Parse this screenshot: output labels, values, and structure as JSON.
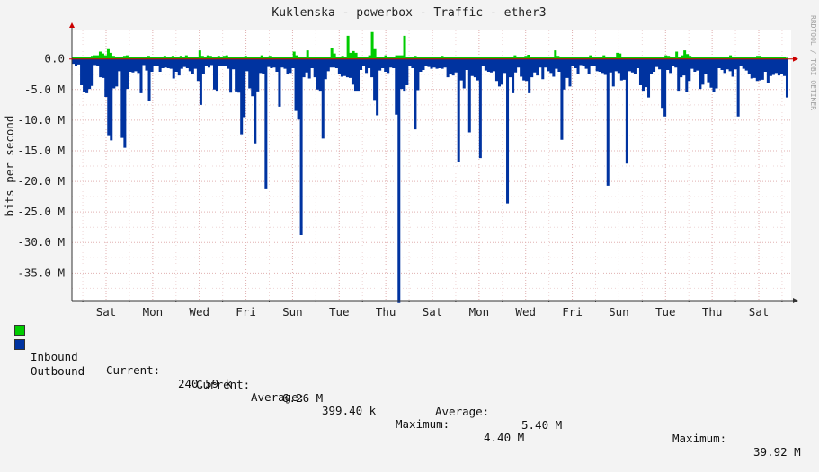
{
  "chart_data": {
    "type": "area",
    "title": "Kuklenska - powerbox - Traffic - ether3",
    "ylabel": "bits per second",
    "watermark": "RRDTOOL / TOBI OETIKER",
    "ylim": [
      -39500000,
      4800000
    ],
    "yticks": [
      {
        "value": 0,
        "label": "0.0"
      },
      {
        "value": -5000000,
        "label": "-5.0 M"
      },
      {
        "value": -10000000,
        "label": "-10.0 M"
      },
      {
        "value": -15000000,
        "label": "-15.0 M"
      },
      {
        "value": -20000000,
        "label": "-20.0 M"
      },
      {
        "value": -25000000,
        "label": "-25.0 M"
      },
      {
        "value": -30000000,
        "label": "-30.0 M"
      },
      {
        "value": -35000000,
        "label": "-35.0 M"
      }
    ],
    "xticks": [
      "Sat",
      "Mon",
      "Wed",
      "Fri",
      "Sun",
      "Tue",
      "Thu",
      "Sat",
      "Mon",
      "Wed",
      "Fri",
      "Sun",
      "Tue",
      "Thu",
      "Sat"
    ],
    "grid": true,
    "colors": {
      "inbound": "#00cc00",
      "outbound": "#0033a0",
      "axis": "#cc0000"
    },
    "series": [
      {
        "name": "Inbound",
        "values": [
          0.4,
          0.3,
          0.3,
          0.3,
          0.3,
          0.3,
          0.4,
          0.5,
          0.6,
          0.6,
          1.2,
          0.9,
          0.6,
          1.6,
          1.0,
          0.5,
          0.4,
          0.3,
          0.3,
          0.5,
          0.6,
          0.4,
          0.3,
          0.3,
          0.3,
          0.4,
          0.3,
          0.3,
          0.5,
          0.4,
          0.3,
          0.3,
          0.4,
          0.3,
          0.5,
          0.3,
          0.3,
          0.5,
          0.3,
          0.3,
          0.5,
          0.4,
          0.6,
          0.4,
          0.3,
          0.4,
          0.3,
          1.4,
          0.5,
          0.3,
          0.6,
          0.5,
          0.4,
          0.4,
          0.5,
          0.4,
          0.5,
          0.6,
          0.4,
          0.3,
          0.3,
          0.3,
          0.4,
          0.3,
          0.5,
          0.3,
          0.3,
          0.4,
          0.3,
          0.4,
          0.6,
          0.4,
          0.4,
          0.5,
          0.4,
          0.3,
          0.3,
          0.3,
          0.3,
          0.3,
          0.3,
          0.3,
          1.2,
          0.6,
          0.4,
          0.3,
          0.3,
          1.4,
          0.3,
          0.3,
          0.3,
          0.4,
          0.4,
          0.4,
          0.4,
          0.4,
          1.8,
          0.9,
          0.3,
          0.3,
          0.5,
          0.3,
          3.8,
          1.0,
          1.3,
          1.0,
          0.3,
          0.4,
          0.4,
          0.3,
          0.6,
          4.4,
          1.6,
          0.3,
          0.3,
          0.3,
          0.6,
          0.4,
          0.4,
          0.4,
          0.6,
          0.6,
          0.6,
          3.8,
          0.4,
          0.4,
          0.4,
          0.5,
          0.3,
          0.3,
          0.3,
          0.3,
          0.3,
          0.4,
          0.3,
          0.4,
          0.3,
          0.5,
          0.3,
          0.3,
          0.3,
          0.3,
          0.3,
          0.3,
          0.3,
          0.4,
          0.4,
          0.3,
          0.3,
          0.3,
          0.3,
          0.3,
          0.4,
          0.4,
          0.4,
          0.3,
          0.3,
          0.3,
          0.4,
          0.3,
          0.3,
          0.3,
          0.3,
          0.3,
          0.6,
          0.4,
          0.3,
          0.3,
          0.5,
          0.7,
          0.4,
          0.4,
          0.3,
          0.3,
          0.4,
          0.3,
          0.4,
          0.3,
          0.3,
          1.4,
          0.5,
          0.4,
          0.3,
          0.3,
          0.4,
          0.3,
          0.3,
          0.4,
          0.4,
          0.3,
          0.3,
          0.3,
          0.6,
          0.4,
          0.4,
          0.3,
          0.3,
          0.6,
          0.4,
          0.4,
          0.3,
          0.3,
          1.0,
          0.9,
          0.3,
          0.3,
          0.4,
          0.3,
          0.3,
          0.3,
          0.3,
          0.3,
          0.3,
          0.4,
          0.3,
          0.3,
          0.4,
          0.4,
          0.3,
          0.4,
          0.6,
          0.5,
          0.4,
          0.4,
          1.2,
          0.3,
          0.6,
          1.4,
          0.8,
          0.5,
          0.3,
          0.4,
          0.3,
          0.3,
          0.3,
          0.3,
          0.4,
          0.4,
          0.3,
          0.3,
          0.3,
          0.3,
          0.3,
          0.3,
          0.6,
          0.4,
          0.3,
          0.3,
          0.4,
          0.3,
          0.3,
          0.3,
          0.3,
          0.3,
          0.5,
          0.5,
          0.3,
          0.3,
          0.3,
          0.4,
          0.3,
          0.3,
          0.4,
          0.3,
          0.3,
          0.2
        ]
      },
      {
        "name": "Outbound",
        "values": [
          -0.8,
          -1.2,
          -0.9,
          -4.3,
          -5.4,
          -5.6,
          -4.9,
          -4.4,
          -1.0,
          -1.1,
          -3.0,
          -3.1,
          -6.2,
          -12.6,
          -13.3,
          -4.8,
          -4.5,
          -2.0,
          -12.9,
          -14.5,
          -4.9,
          -2.1,
          -2.2,
          -2.0,
          -2.3,
          -5.6,
          -1.0,
          -1.9,
          -6.8,
          -2.1,
          -1.2,
          -1.1,
          -2.1,
          -1.5,
          -1.4,
          -1.5,
          -1.6,
          -3.2,
          -2.1,
          -2.7,
          -1.6,
          -1.3,
          -1.5,
          -2.0,
          -2.4,
          -1.6,
          -3.6,
          -7.5,
          -2.4,
          -1.2,
          -1.4,
          -1.0,
          -5.0,
          -5.2,
          -1.1,
          -1.1,
          -1.2,
          -1.6,
          -5.5,
          -1.7,
          -5.3,
          -5.5,
          -12.3,
          -9.5,
          -2.0,
          -4.8,
          -6.1,
          -13.8,
          -5.3,
          -2.3,
          -2.5,
          -21.3,
          -1.3,
          -1.5,
          -1.4,
          -2.1,
          -7.8,
          -1.4,
          -1.6,
          -2.5,
          -2.3,
          -1.5,
          -8.5,
          -9.9,
          -28.8,
          -3.0,
          -2.2,
          -3.2,
          -1.5,
          -3.0,
          -5.0,
          -5.2,
          -13.0,
          -3.3,
          -2.0,
          -1.4,
          -1.4,
          -1.5,
          -2.5,
          -2.9,
          -2.8,
          -3.0,
          -3.1,
          -4.2,
          -5.2,
          -5.2,
          -1.8,
          -1.2,
          -2.3,
          -1.5,
          -3.0,
          -6.7,
          -9.2,
          -1.9,
          -1.5,
          -2.1,
          -2.3,
          -1.4,
          -1.5,
          -9.1,
          -39.9,
          -4.9,
          -5.2,
          -4.3,
          -1.2,
          -1.5,
          -11.5,
          -5.1,
          -2.1,
          -1.8,
          -1.2,
          -1.3,
          -1.6,
          -1.4,
          -1.6,
          -1.5,
          -1.6,
          -1.4,
          -3.0,
          -2.5,
          -2.7,
          -2.2,
          -16.8,
          -3.5,
          -4.8,
          -1.8,
          -12.0,
          -2.8,
          -3.0,
          -3.5,
          -16.2,
          -1.2,
          -1.9,
          -2.1,
          -2.2,
          -2.0,
          -3.6,
          -4.5,
          -4.2,
          -2.3,
          -23.6,
          -3.0,
          -5.6,
          -2.2,
          -1.4,
          -2.9,
          -3.5,
          -3.6,
          -5.6,
          -3.0,
          -2.2,
          -2.7,
          -1.4,
          -3.3,
          -1.4,
          -2.0,
          -2.3,
          -2.9,
          -1.6,
          -2.1,
          -13.2,
          -5.0,
          -3.1,
          -4.5,
          -1.1,
          -1.5,
          -2.4,
          -1.0,
          -1.2,
          -1.6,
          -2.5,
          -1.2,
          -1.1,
          -2.0,
          -2.1,
          -2.3,
          -2.6,
          -20.7,
          -2.2,
          -4.5,
          -2.0,
          -2.3,
          -3.5,
          -3.4,
          -17.1,
          -2.0,
          -2.2,
          -2.4,
          -1.5,
          -4.3,
          -5.2,
          -4.6,
          -6.3,
          -2.5,
          -2.1,
          -1.3,
          -1.7,
          -8.0,
          -9.4,
          -1.8,
          -2.3,
          -1.1,
          -1.4,
          -5.2,
          -3.0,
          -2.7,
          -5.4,
          -3.6,
          -1.6,
          -2.1,
          -1.9,
          -4.9,
          -4.2,
          -2.4,
          -3.8,
          -4.7,
          -5.4,
          -4.8,
          -1.5,
          -1.8,
          -2.3,
          -1.7,
          -2.0,
          -2.9,
          -1.7,
          -9.4,
          -1.2,
          -1.6,
          -1.9,
          -2.4,
          -3.2,
          -3.1,
          -3.6,
          -3.5,
          -3.4,
          -2.1,
          -3.9,
          -2.8,
          -2.6,
          -2.3,
          -2.7,
          -2.4,
          -2.8,
          -6.3
        ]
      }
    ]
  },
  "legend": {
    "inbound": {
      "name": "Inbound",
      "current_label": "Current:",
      "current_value": "240.59 k",
      "average_label": "Average:",
      "average_value": "399.40 k",
      "maximum_label": "Maximum:",
      "maximum_value": "4.40 M"
    },
    "outbound": {
      "name": "Outbound",
      "current_label": "Current:",
      "current_value": "6.26 M",
      "average_label": "Average:",
      "average_value": "5.40 M",
      "maximum_label": "Maximum:",
      "maximum_value": "39.92 M"
    }
  }
}
